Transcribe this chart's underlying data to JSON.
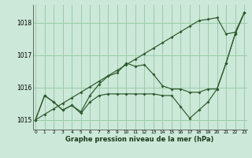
{
  "bg_color": "#cce8d8",
  "grid_color": "#99ccaa",
  "line_color": "#2d5a2d",
  "xlabel": "Graphe pression niveau de la mer (hPa)",
  "ylim": [
    1014.7,
    1018.55
  ],
  "xlim": [
    -0.3,
    23.3
  ],
  "yticks": [
    1015,
    1016,
    1017,
    1018
  ],
  "xtick_labels": [
    "0",
    "1",
    "2",
    "3",
    "4",
    "5",
    "6",
    "7",
    "8",
    "9",
    "10",
    "11",
    "12",
    "13",
    "14",
    "15",
    "16",
    "17",
    "18",
    "19",
    "20",
    "21",
    "22",
    "23"
  ],
  "series_diag": [
    1015.0,
    1015.17,
    1015.34,
    1015.51,
    1015.68,
    1015.85,
    1016.02,
    1016.19,
    1016.36,
    1016.53,
    1016.7,
    1016.87,
    1017.04,
    1017.21,
    1017.38,
    1017.55,
    1017.72,
    1017.89,
    1018.06,
    1018.1,
    1018.15,
    1017.65,
    1017.7,
    1018.3
  ],
  "series_mid": [
    1015.0,
    1015.75,
    1015.55,
    1015.3,
    1015.45,
    1015.25,
    1015.75,
    1016.1,
    1016.35,
    1016.45,
    1016.75,
    1016.65,
    1016.7,
    1016.4,
    1016.05,
    1015.95,
    1015.95,
    1015.85,
    1015.85,
    1015.95,
    1015.95,
    1016.75,
    1017.65,
    1018.3
  ],
  "series_low": [
    1015.0,
    1015.75,
    1015.55,
    1015.3,
    1015.45,
    1015.2,
    1015.55,
    1015.75,
    1015.8,
    1015.8,
    1015.8,
    1015.8,
    1015.8,
    1015.8,
    1015.75,
    1015.75,
    1015.4,
    1015.05,
    1015.3,
    1015.55,
    1015.95,
    1016.75,
    1017.65,
    1018.3
  ]
}
